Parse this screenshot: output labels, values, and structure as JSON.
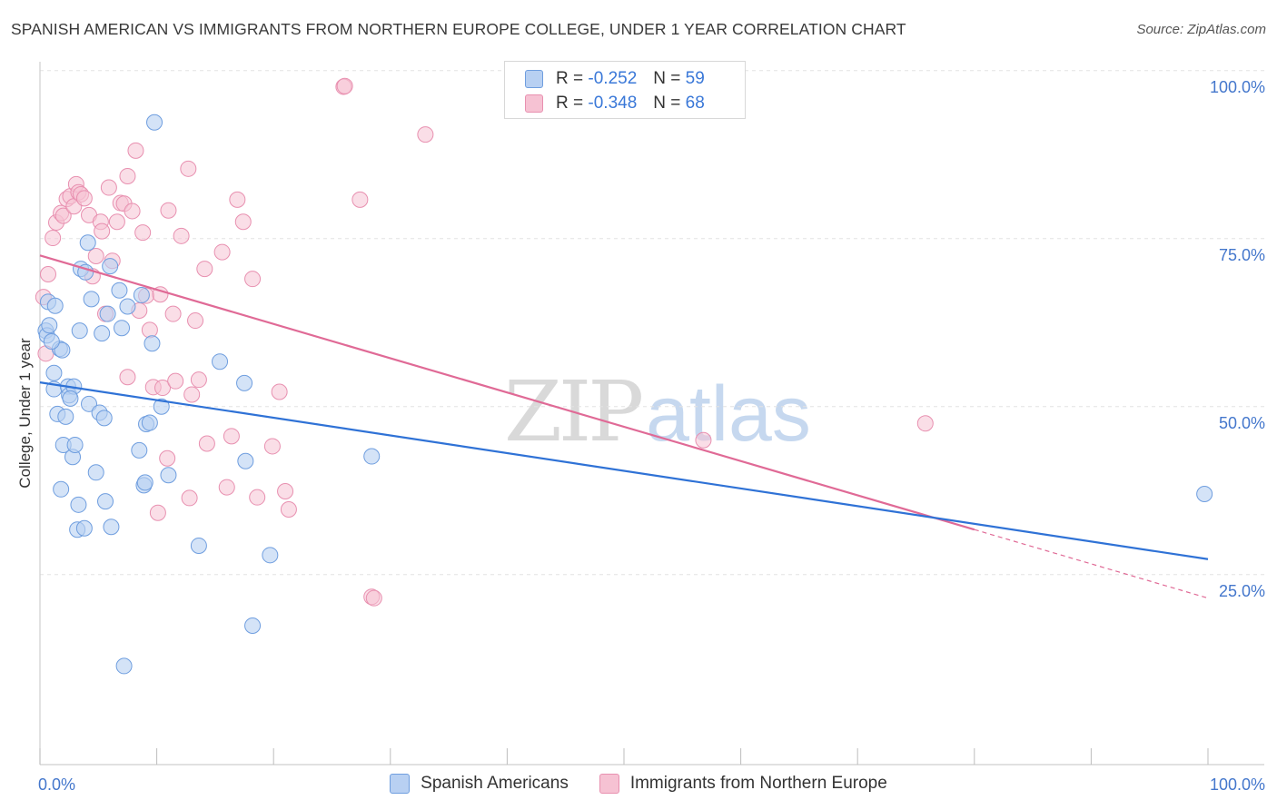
{
  "title": "SPANISH AMERICAN VS IMMIGRANTS FROM NORTHERN EUROPE COLLEGE, UNDER 1 YEAR CORRELATION CHART",
  "source": "Source: ZipAtlas.com",
  "watermark": {
    "zip": "ZIP",
    "atlas": "atlas"
  },
  "legend": {
    "series1": {
      "r_label": "R =",
      "r_value": "-0.252",
      "n_label": "N =",
      "n_value": "59"
    },
    "series2": {
      "r_label": "R =",
      "r_value": "-0.348",
      "n_label": "N =",
      "n_value": "68"
    }
  },
  "colors": {
    "blue_fill": "#b8d0f2",
    "blue_stroke": "#6f9edf",
    "blue_line": "#2f72d6",
    "pink_fill": "#f6c2d3",
    "pink_stroke": "#e890b0",
    "pink_line": "#e06a96",
    "grid": "#e3e3e3",
    "tick_text": "#4477cc"
  },
  "chart_data": {
    "type": "scatter",
    "title": "SPANISH AMERICAN VS IMMIGRANTS FROM NORTHERN EUROPE COLLEGE, UNDER 1 YEAR CORRELATION CHART",
    "xlabel": "",
    "ylabel": "College, Under 1 year",
    "xlim": [
      0,
      100
    ],
    "ylim": [
      2,
      102
    ],
    "x_tick_labels": [
      "0.0%",
      "100.0%"
    ],
    "y_ticks": [
      25,
      50,
      75,
      100
    ],
    "y_tick_labels": [
      "25.0%",
      "50.0%",
      "75.0%",
      "100.0%"
    ],
    "series": [
      {
        "name": "Spanish Americans",
        "color": "#6f9edf",
        "trend": {
          "x": [
            0,
            100
          ],
          "y": [
            55.9,
            29.6
          ]
        },
        "points": [
          [
            0.5,
            63.6
          ],
          [
            0.6,
            62.9
          ],
          [
            0.8,
            64.4
          ],
          [
            0.7,
            67.9
          ],
          [
            1.2,
            57.3
          ],
          [
            1.3,
            67.3
          ],
          [
            1.2,
            54.9
          ],
          [
            1.5,
            51.2
          ],
          [
            1.7,
            60.9
          ],
          [
            1.9,
            60.7
          ],
          [
            2.0,
            46.6
          ],
          [
            1.8,
            40.0
          ],
          [
            2.2,
            50.8
          ],
          [
            2.4,
            55.3
          ],
          [
            2.5,
            54.0
          ],
          [
            2.8,
            44.8
          ],
          [
            2.9,
            55.3
          ],
          [
            3.0,
            46.6
          ],
          [
            3.2,
            34.0
          ],
          [
            3.3,
            37.7
          ],
          [
            3.4,
            63.6
          ],
          [
            3.5,
            72.8
          ],
          [
            3.8,
            34.2
          ],
          [
            3.9,
            72.3
          ],
          [
            4.1,
            76.7
          ],
          [
            4.2,
            52.7
          ],
          [
            4.4,
            68.3
          ],
          [
            4.8,
            42.5
          ],
          [
            5.1,
            51.4
          ],
          [
            5.3,
            63.2
          ],
          [
            5.5,
            50.6
          ],
          [
            5.6,
            38.2
          ],
          [
            5.8,
            66.1
          ],
          [
            6.0,
            73.2
          ],
          [
            6.1,
            34.4
          ],
          [
            6.8,
            69.6
          ],
          [
            7.2,
            13.7
          ],
          [
            7.5,
            67.2
          ],
          [
            8.5,
            45.8
          ],
          [
            8.9,
            40.6
          ],
          [
            8.7,
            68.9
          ],
          [
            9.1,
            49.7
          ],
          [
            9.4,
            49.9
          ],
          [
            9.6,
            61.7
          ],
          [
            9.8,
            94.6
          ],
          [
            10.4,
            52.3
          ],
          [
            11.0,
            42.1
          ],
          [
            13.6,
            31.6
          ],
          [
            15.4,
            59.0
          ],
          [
            17.5,
            55.8
          ],
          [
            17.6,
            44.2
          ],
          [
            18.2,
            19.7
          ],
          [
            19.7,
            30.2
          ],
          [
            28.4,
            44.9
          ],
          [
            99.7,
            39.3
          ],
          [
            1.0,
            62.0
          ],
          [
            2.6,
            53.5
          ],
          [
            7.0,
            64.0
          ],
          [
            9.0,
            41.0
          ]
        ]
      },
      {
        "name": "Immigrants from Northern Europe",
        "color": "#e890b0",
        "trend": {
          "x": [
            0,
            80
          ],
          "y": [
            74.8,
            34.0
          ]
        },
        "trend_dashed": {
          "x": [
            80,
            100
          ],
          "y": [
            34.0,
            23.8
          ]
        },
        "points": [
          [
            0.3,
            68.6
          ],
          [
            0.5,
            60.2
          ],
          [
            0.7,
            72.0
          ],
          [
            1.1,
            77.4
          ],
          [
            1.4,
            79.7
          ],
          [
            1.8,
            81.1
          ],
          [
            2.0,
            80.7
          ],
          [
            2.3,
            83.2
          ],
          [
            2.6,
            83.6
          ],
          [
            2.9,
            82.1
          ],
          [
            3.1,
            85.4
          ],
          [
            3.3,
            84.2
          ],
          [
            3.5,
            83.9
          ],
          [
            3.8,
            83.3
          ],
          [
            4.2,
            80.8
          ],
          [
            4.5,
            71.7
          ],
          [
            4.8,
            74.7
          ],
          [
            5.2,
            79.8
          ],
          [
            5.3,
            78.4
          ],
          [
            5.6,
            66.1
          ],
          [
            5.9,
            84.9
          ],
          [
            6.2,
            74.0
          ],
          [
            6.6,
            79.8
          ],
          [
            6.9,
            82.6
          ],
          [
            7.2,
            82.5
          ],
          [
            7.5,
            86.6
          ],
          [
            7.5,
            56.7
          ],
          [
            7.9,
            81.4
          ],
          [
            8.2,
            90.4
          ],
          [
            8.5,
            66.6
          ],
          [
            8.8,
            78.2
          ],
          [
            9.1,
            68.8
          ],
          [
            9.4,
            63.7
          ],
          [
            9.7,
            55.2
          ],
          [
            10.1,
            36.5
          ],
          [
            10.3,
            69.0
          ],
          [
            10.5,
            55.1
          ],
          [
            10.9,
            44.6
          ],
          [
            11.0,
            81.5
          ],
          [
            11.4,
            66.1
          ],
          [
            11.6,
            56.1
          ],
          [
            12.1,
            77.7
          ],
          [
            12.7,
            87.7
          ],
          [
            12.8,
            38.7
          ],
          [
            13.0,
            54.1
          ],
          [
            13.3,
            65.1
          ],
          [
            13.6,
            56.3
          ],
          [
            14.1,
            72.8
          ],
          [
            14.3,
            46.8
          ],
          [
            15.6,
            75.3
          ],
          [
            16.0,
            40.3
          ],
          [
            16.4,
            47.9
          ],
          [
            16.9,
            83.1
          ],
          [
            17.4,
            79.8
          ],
          [
            18.2,
            71.3
          ],
          [
            18.6,
            38.8
          ],
          [
            19.9,
            46.4
          ],
          [
            20.5,
            54.5
          ],
          [
            21.0,
            39.7
          ],
          [
            21.3,
            37.0
          ],
          [
            26.0,
            99.9
          ],
          [
            26.1,
            100.0
          ],
          [
            27.4,
            83.1
          ],
          [
            28.4,
            24.0
          ],
          [
            28.6,
            23.8
          ],
          [
            33.0,
            92.8
          ],
          [
            56.8,
            47.3
          ],
          [
            75.8,
            49.8
          ]
        ]
      }
    ]
  }
}
